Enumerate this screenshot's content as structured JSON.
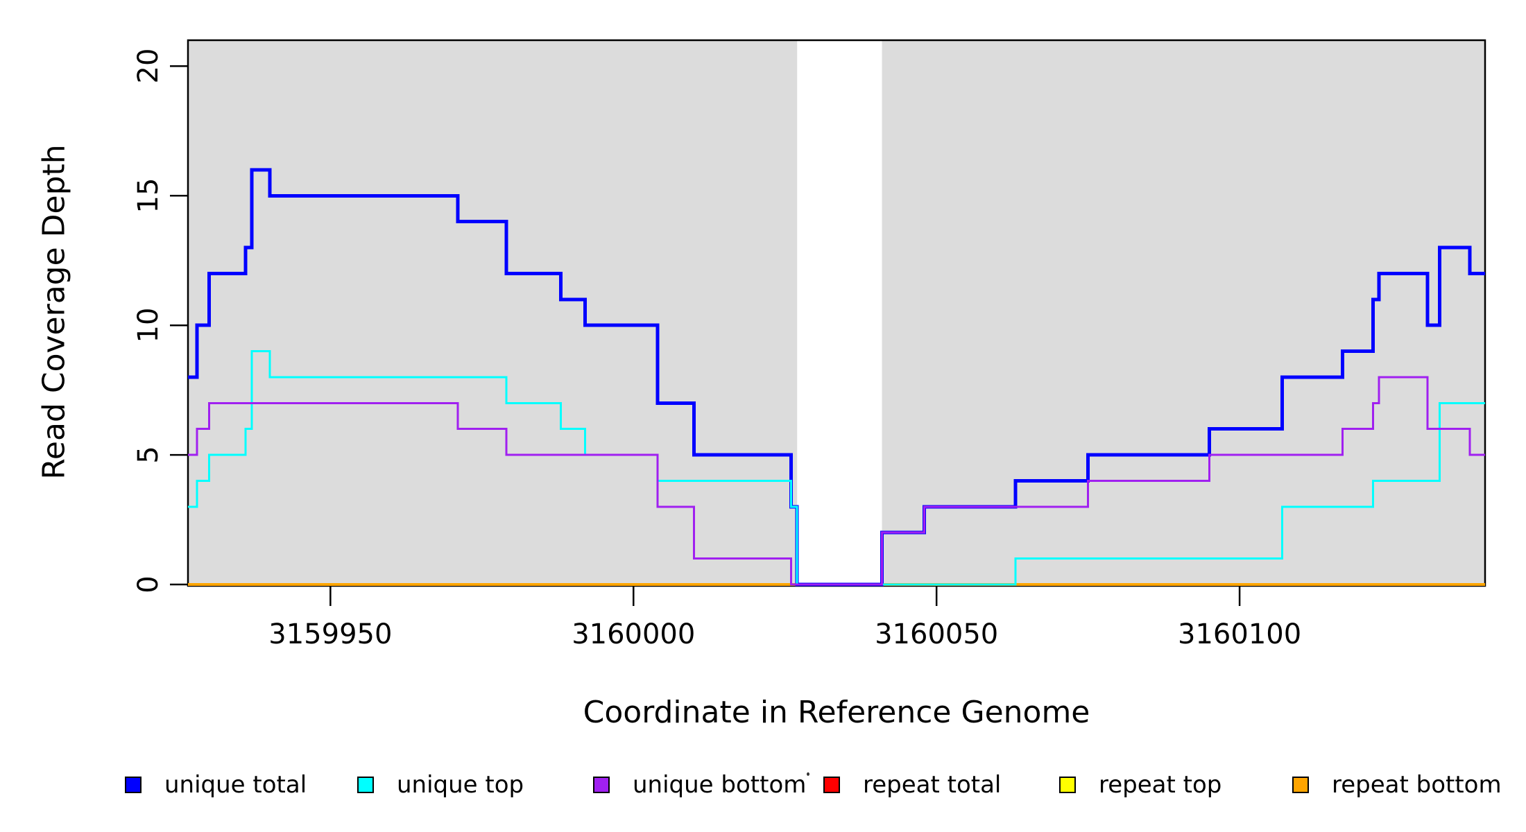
{
  "chart_data": {
    "type": "line",
    "subtype": "step-post",
    "title": "",
    "xlabel": "Coordinate in Reference Genome",
    "ylabel": "Read Coverage Depth",
    "xlim": [
      3159926.5,
      3160140.5
    ],
    "ylim": [
      0,
      21
    ],
    "grid": "off",
    "background_color": "#FFFFFF",
    "box_color": "#000000",
    "x_ticks": [
      {
        "v": 3159950,
        "label": "3159950"
      },
      {
        "v": 3160000,
        "label": "3160000"
      },
      {
        "v": 3160050,
        "label": "3160050"
      },
      {
        "v": 3160100,
        "label": "3160100"
      }
    ],
    "y_ticks": [
      {
        "v": 0,
        "label": "0"
      },
      {
        "v": 5,
        "label": "5"
      },
      {
        "v": 10,
        "label": "10"
      },
      {
        "v": 15,
        "label": "15"
      },
      {
        "v": 20,
        "label": "20"
      }
    ],
    "shaded_regions": [
      {
        "x0": 3159926.5,
        "x1": 3160027,
        "color": "#DCDCDC"
      },
      {
        "x0": 3160041,
        "x1": 3160140.5,
        "color": "#DCDCDC"
      }
    ],
    "gap_region": {
      "x0": 3160027,
      "x1": 3160041
    },
    "series": [
      {
        "name": "repeat total",
        "color": "#FF0000",
        "lwd": 3,
        "segments": [
          {
            "points": [
              [
                3159926.5,
                0
              ]
            ],
            "end": 3160027
          },
          {
            "points": [
              [
                3160041,
                0
              ]
            ],
            "end": 3160140.5
          }
        ]
      },
      {
        "name": "repeat top",
        "color": "#FFFF00",
        "lwd": 3,
        "segments": [
          {
            "points": [
              [
                3159926.5,
                0
              ]
            ],
            "end": 3160027
          },
          {
            "points": [
              [
                3160041,
                0
              ]
            ],
            "end": 3160140.5
          }
        ]
      },
      {
        "name": "repeat bottom",
        "color": "#FFA500",
        "lwd": 4,
        "segments": [
          {
            "points": [
              [
                3159926.5,
                0
              ]
            ],
            "end": 3160027
          },
          {
            "points": [
              [
                3160041,
                0
              ]
            ],
            "end": 3160140.5
          }
        ]
      },
      {
        "name": "unique total",
        "color": "#0000FF",
        "lwd": 5,
        "segments": [
          {
            "points": [
              [
                3159926.5,
                8
              ],
              [
                3159928,
                10
              ],
              [
                3159930,
                12
              ],
              [
                3159936,
                13
              ],
              [
                3159937,
                16
              ],
              [
                3159940,
                15
              ],
              [
                3159971,
                14
              ],
              [
                3159979,
                12
              ],
              [
                3159988,
                11
              ],
              [
                3159992,
                10
              ],
              [
                3160004,
                7
              ],
              [
                3160010,
                5
              ],
              [
                3160026,
                3
              ],
              [
                3160027,
                0
              ],
              [
                3160041,
                2
              ],
              [
                3160048,
                3
              ],
              [
                3160063,
                4
              ],
              [
                3160075,
                5
              ],
              [
                3160095,
                6
              ],
              [
                3160107,
                8
              ],
              [
                3160117,
                9
              ],
              [
                3160122,
                11
              ],
              [
                3160123,
                12
              ],
              [
                3160131,
                10
              ],
              [
                3160133,
                13
              ],
              [
                3160138,
                12
              ]
            ],
            "end": 3160140.5
          }
        ]
      },
      {
        "name": "unique top",
        "color": "#00FFFF",
        "lwd": 3,
        "segments": [
          {
            "points": [
              [
                3159926.5,
                3
              ],
              [
                3159928,
                4
              ],
              [
                3159930,
                5
              ],
              [
                3159936,
                6
              ],
              [
                3159937,
                9
              ],
              [
                3159940,
                8
              ],
              [
                3159979,
                7
              ],
              [
                3159988,
                6
              ],
              [
                3159992,
                5
              ],
              [
                3160004,
                4
              ],
              [
                3160026,
                3
              ],
              [
                3160027,
                0
              ],
              [
                3160063,
                1
              ],
              [
                3160107,
                3
              ],
              [
                3160122,
                4
              ],
              [
                3160133,
                7
              ]
            ],
            "end": 3160140.5
          }
        ]
      },
      {
        "name": "unique bottom",
        "color": "#A020F0",
        "lwd": 3,
        "segments": [
          {
            "points": [
              [
                3159926.5,
                5
              ],
              [
                3159928,
                6
              ],
              [
                3159930,
                7
              ],
              [
                3159971,
                6
              ],
              [
                3159979,
                5
              ],
              [
                3160004,
                3
              ],
              [
                3160010,
                1
              ],
              [
                3160026,
                0
              ],
              [
                3160041,
                2
              ],
              [
                3160048,
                3
              ],
              [
                3160075,
                4
              ],
              [
                3160095,
                5
              ],
              [
                3160117,
                6
              ],
              [
                3160122,
                7
              ],
              [
                3160123,
                8
              ],
              [
                3160131,
                6
              ],
              [
                3160138,
                5
              ]
            ],
            "end": 3160140.5
          }
        ]
      }
    ],
    "legend": {
      "position": "bottom",
      "items": [
        {
          "label": "unique total",
          "color": "#0000FF"
        },
        {
          "label": "unique top",
          "color": "#00FFFF"
        },
        {
          "label": "unique bottom",
          "color": "#A020F0"
        },
        {
          "label": "repeat total",
          "color": "#FF0000"
        },
        {
          "label": "repeat top",
          "color": "#FFFF00"
        },
        {
          "label": "repeat bottom",
          "color": "#FFA500"
        }
      ]
    }
  }
}
